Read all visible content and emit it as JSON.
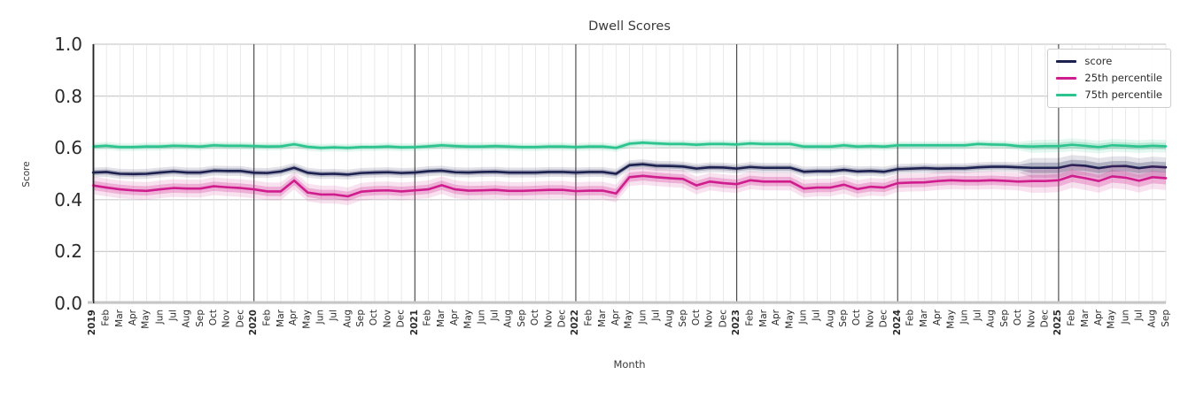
{
  "title": "Dwell Scores",
  "axes": {
    "xlabel": "Month",
    "ylabel": "Score",
    "yticks": [
      "1.0",
      "0.8",
      "0.6",
      "0.4",
      "0.2",
      "0.0"
    ],
    "ylim": [
      0.0,
      1.0
    ],
    "grid": "on"
  },
  "legend": {
    "position": "upper right",
    "items": [
      {
        "label": "score",
        "color": "#1d2150"
      },
      {
        "label": "25th percentile",
        "color": "#cf1d8d"
      },
      {
        "label": "75th percentile",
        "color": "#2bc48e"
      }
    ]
  },
  "chart_data": {
    "type": "line",
    "title": "Dwell Scores",
    "xlabel": "Month",
    "ylabel": "Score",
    "ylim": [
      0.0,
      1.0
    ],
    "x_labels": [
      "2019",
      "Feb",
      "Mar",
      "Apr",
      "May",
      "Jun",
      "Jul",
      "Aug",
      "Sep",
      "Oct",
      "Nov",
      "Dec",
      "2020",
      "Feb",
      "Mar",
      "Apr",
      "May",
      "Jun",
      "Jul",
      "Aug",
      "Sep",
      "Oct",
      "Nov",
      "Dec",
      "2021",
      "Feb",
      "Mar",
      "Apr",
      "May",
      "Jun",
      "Jul",
      "Aug",
      "Sep",
      "Oct",
      "Nov",
      "Dec",
      "2022",
      "Feb",
      "Mar",
      "Apr",
      "May",
      "Jun",
      "Jul",
      "Aug",
      "Sep",
      "Oct",
      "Nov",
      "Dec",
      "2023",
      "Feb",
      "Mar",
      "Apr",
      "May",
      "Jun",
      "Jul",
      "Aug",
      "Sep",
      "Oct",
      "Nov",
      "Dec",
      "2024",
      "Feb",
      "Mar",
      "Apr",
      "May",
      "Jun",
      "Jul",
      "Aug",
      "Sep",
      "Oct",
      "Nov",
      "Dec",
      "2025",
      "Feb",
      "Mar",
      "Apr",
      "May",
      "Jun",
      "Jul",
      "Aug",
      "Sep"
    ],
    "year_indices": [
      0,
      12,
      24,
      36,
      48,
      60,
      72
    ],
    "late_start_index": 70,
    "series": [
      {
        "name": "score",
        "color": "#1d2150",
        "band_halfwidth": 0.01,
        "band_halfwidth_late": 0.02,
        "values": [
          0.505,
          0.507,
          0.5,
          0.499,
          0.5,
          0.505,
          0.509,
          0.505,
          0.505,
          0.512,
          0.511,
          0.511,
          0.504,
          0.503,
          0.509,
          0.523,
          0.504,
          0.499,
          0.5,
          0.497,
          0.503,
          0.505,
          0.506,
          0.503,
          0.505,
          0.51,
          0.512,
          0.506,
          0.505,
          0.507,
          0.508,
          0.505,
          0.505,
          0.505,
          0.507,
          0.507,
          0.505,
          0.507,
          0.507,
          0.5,
          0.533,
          0.537,
          0.531,
          0.53,
          0.528,
          0.52,
          0.525,
          0.524,
          0.52,
          0.526,
          0.523,
          0.523,
          0.523,
          0.508,
          0.51,
          0.51,
          0.515,
          0.509,
          0.511,
          0.508,
          0.518,
          0.52,
          0.522,
          0.52,
          0.521,
          0.521,
          0.525,
          0.527,
          0.527,
          0.525,
          0.523,
          0.523,
          0.523,
          0.534,
          0.531,
          0.522,
          0.529,
          0.53,
          0.522,
          0.528,
          0.525
        ]
      },
      {
        "name": "25th percentile",
        "color": "#cf1d8d",
        "band_halfwidth": 0.018,
        "band_halfwidth_late": 0.024,
        "values": [
          0.455,
          0.447,
          0.44,
          0.436,
          0.434,
          0.44,
          0.445,
          0.443,
          0.443,
          0.452,
          0.448,
          0.445,
          0.44,
          0.432,
          0.432,
          0.474,
          0.428,
          0.42,
          0.42,
          0.413,
          0.431,
          0.435,
          0.436,
          0.432,
          0.436,
          0.44,
          0.456,
          0.44,
          0.435,
          0.436,
          0.438,
          0.434,
          0.434,
          0.436,
          0.438,
          0.438,
          0.433,
          0.435,
          0.435,
          0.424,
          0.487,
          0.492,
          0.487,
          0.483,
          0.48,
          0.455,
          0.47,
          0.464,
          0.46,
          0.475,
          0.47,
          0.47,
          0.47,
          0.443,
          0.447,
          0.447,
          0.458,
          0.441,
          0.45,
          0.447,
          0.464,
          0.466,
          0.467,
          0.472,
          0.475,
          0.473,
          0.473,
          0.475,
          0.473,
          0.47,
          0.472,
          0.472,
          0.475,
          0.492,
          0.483,
          0.472,
          0.49,
          0.485,
          0.473,
          0.487,
          0.483
        ]
      },
      {
        "name": "75th percentile",
        "color": "#2bc48e",
        "band_halfwidth": 0.008,
        "band_halfwidth_late": 0.013,
        "values": [
          0.605,
          0.608,
          0.603,
          0.603,
          0.605,
          0.605,
          0.608,
          0.607,
          0.605,
          0.61,
          0.608,
          0.608,
          0.607,
          0.605,
          0.606,
          0.614,
          0.604,
          0.6,
          0.602,
          0.6,
          0.603,
          0.603,
          0.605,
          0.602,
          0.603,
          0.606,
          0.61,
          0.607,
          0.605,
          0.605,
          0.607,
          0.605,
          0.603,
          0.603,
          0.605,
          0.605,
          0.603,
          0.605,
          0.605,
          0.6,
          0.616,
          0.62,
          0.617,
          0.615,
          0.615,
          0.612,
          0.615,
          0.615,
          0.613,
          0.617,
          0.615,
          0.615,
          0.615,
          0.605,
          0.605,
          0.605,
          0.61,
          0.605,
          0.607,
          0.605,
          0.61,
          0.61,
          0.61,
          0.61,
          0.61,
          0.61,
          0.615,
          0.613,
          0.612,
          0.607,
          0.605,
          0.607,
          0.607,
          0.612,
          0.608,
          0.603,
          0.61,
          0.608,
          0.605,
          0.608,
          0.606
        ]
      }
    ],
    "grid": {
      "month_line_color": "#e4e4e4",
      "major_h_color": "#cccccc",
      "year_line_color": "#3f3f3f"
    }
  }
}
